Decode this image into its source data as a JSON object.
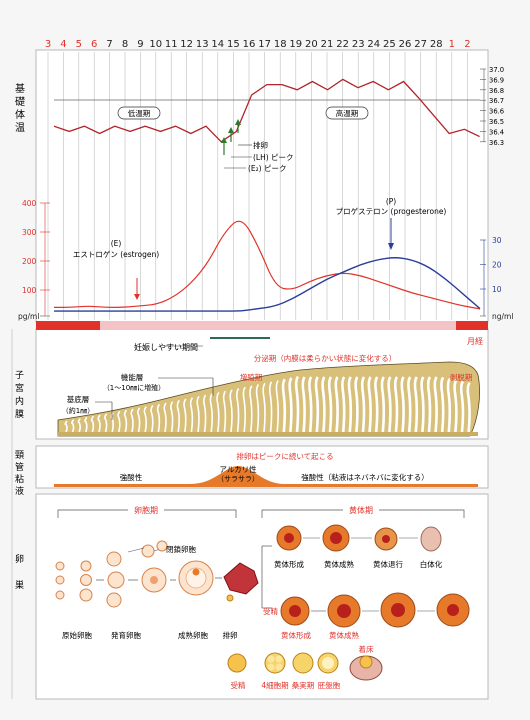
{
  "cycle_days": [
    {
      "n": "3",
      "c": "red"
    },
    {
      "n": "4",
      "c": "red"
    },
    {
      "n": "5",
      "c": "red"
    },
    {
      "n": "6",
      "c": "red"
    },
    {
      "n": "7",
      "c": "black"
    },
    {
      "n": "8",
      "c": "black"
    },
    {
      "n": "9",
      "c": "black"
    },
    {
      "n": "10",
      "c": "black"
    },
    {
      "n": "11",
      "c": "black"
    },
    {
      "n": "12",
      "c": "black"
    },
    {
      "n": "13",
      "c": "black"
    },
    {
      "n": "14",
      "c": "black"
    },
    {
      "n": "15",
      "c": "black"
    },
    {
      "n": "16",
      "c": "black"
    },
    {
      "n": "17",
      "c": "black"
    },
    {
      "n": "18",
      "c": "black"
    },
    {
      "n": "19",
      "c": "black"
    },
    {
      "n": "20",
      "c": "black"
    },
    {
      "n": "21",
      "c": "black"
    },
    {
      "n": "22",
      "c": "black"
    },
    {
      "n": "23",
      "c": "black"
    },
    {
      "n": "24",
      "c": "black"
    },
    {
      "n": "25",
      "c": "black"
    },
    {
      "n": "26",
      "c": "black"
    },
    {
      "n": "27",
      "c": "black"
    },
    {
      "n": "28",
      "c": "black"
    },
    {
      "n": "1",
      "c": "red"
    },
    {
      "n": "2",
      "c": "red"
    }
  ],
  "colors": {
    "red": "#e0322b",
    "orange_red": "#e8462a",
    "blue": "#2a3f9a",
    "pink": "#f2b9c0",
    "dark_red_line": "#b0242a",
    "endo_fill": "#d8c07a",
    "endo_outline": "#5a4a20",
    "follicle": "#e67a2a",
    "follicle_core": "#b8201c",
    "frame": "#8a8a8a"
  },
  "bbt": {
    "side_label": "基礎体温",
    "low_phase": "低温期",
    "high_phase": "高温期",
    "scale": [
      "37.0",
      "36.9",
      "36.8",
      "36.7",
      "36.6",
      "36.5",
      "36.4",
      "36.3"
    ],
    "annotations": {
      "ovulation": "排卵",
      "lh": "(LH) ピーク",
      "e2": "(E₂) ピーク"
    },
    "values": [
      36.45,
      36.4,
      36.45,
      36.38,
      36.45,
      36.4,
      36.45,
      36.4,
      36.45,
      36.38,
      36.45,
      36.3,
      36.4,
      36.75,
      36.85,
      36.85,
      36.8,
      36.88,
      36.8,
      36.9,
      36.82,
      36.88,
      36.8,
      36.88,
      36.72,
      36.55,
      36.38,
      36.42,
      36.35
    ]
  },
  "hormones": {
    "left_scale": [
      "400",
      "300",
      "200",
      "100",
      "pg/ml"
    ],
    "right_scale": [
      "30",
      "20",
      "10",
      "ng/ml"
    ],
    "estrogen": "(E)\nエストロゲン (estrogen)",
    "estrogen_l1": "(E)",
    "estrogen_l2": "エストロゲン (estrogen)",
    "progesterone_l1": "(P)",
    "progesterone_l2": "プロゲステロン (progesterone)",
    "estrogen_values": [
      40,
      40,
      45,
      40,
      40,
      45,
      50,
      75,
      120,
      190,
      300,
      355,
      250,
      110,
      100,
      130,
      150,
      160,
      150,
      130,
      110,
      90,
      75,
      60,
      45,
      35
    ],
    "progesterone_values": [
      1,
      1,
      1,
      1,
      1,
      1,
      1,
      1,
      1,
      1,
      1,
      1,
      2,
      3,
      6,
      10,
      14,
      17,
      20,
      22,
      23,
      22,
      19,
      14,
      8,
      2
    ]
  },
  "menses_label": "月経",
  "fertile_label": "妊娠しやすい期間",
  "uterus": {
    "side_label": "子宮内膜",
    "secretory": "分泌期（内膜は柔らかい状態に変化する）",
    "proliferative": "増殖期",
    "shedding": "剥脱期",
    "functional_l1": "機能層",
    "functional_l2": "（1～10㎜に増殖）",
    "basal_l1": "基底層",
    "basal_l2": "（約1㎜）"
  },
  "cervix": {
    "side_label": "頸管粘液",
    "top_note": "排卵はピークに続いて起こる",
    "alkaline_l1": "アルカリ性",
    "alkaline_l2": "（サラサラ）",
    "acid_left": "強酸性",
    "acid_right": "強酸性（粘液はネバネバに変化する）"
  },
  "ovary": {
    "side_label": "卵巣",
    "follicular_phase": "卵胞期",
    "luteal_phase": "黄体期",
    "atretic": "閉鎖卵胞",
    "primordial": "原始卵胞",
    "developing": "発育卵胞",
    "mature": "成熟卵胞",
    "ovulation": "排卵",
    "top_row": [
      "黄体形成",
      "黄体成熟",
      "黄体退行",
      "白体化"
    ],
    "fertilized": "受精",
    "bottom_row": [
      "黄体形成",
      "黄体成熟"
    ],
    "pregnancy_row": [
      "受精",
      "4細胞期",
      "桑実期",
      "胚盤胞"
    ],
    "implantation": "着床"
  }
}
